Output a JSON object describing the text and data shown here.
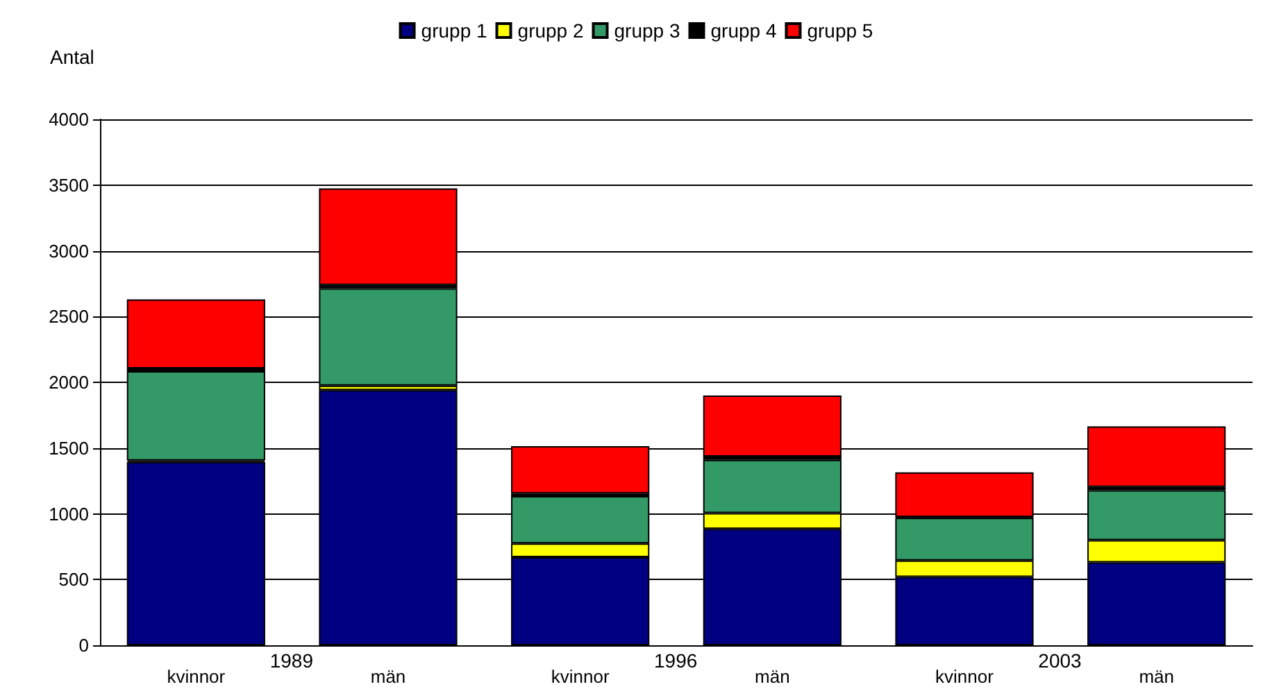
{
  "chart_data": {
    "type": "bar",
    "stacked": true,
    "ylabel": "Antal",
    "categories": [
      "kvinnor",
      "män",
      "kvinnor",
      "män",
      "kvinnor",
      "män"
    ],
    "series": [
      {
        "name": "grupp 1",
        "color": "#000080",
        "values": [
          1395,
          1940,
          670,
          885,
          520,
          630
        ]
      },
      {
        "name": "grupp 2",
        "color": "#ffff00",
        "values": [
          10,
          35,
          105,
          120,
          125,
          170
        ]
      },
      {
        "name": "grupp 3",
        "color": "#339966",
        "values": [
          680,
          740,
          360,
          405,
          325,
          380
        ]
      },
      {
        "name": "grupp 4",
        "color": "#000000",
        "values": [
          20,
          25,
          20,
          25,
          5,
          25
        ]
      },
      {
        "name": "grupp 5",
        "color": "#ff0000",
        "values": [
          525,
          735,
          360,
          465,
          340,
          460
        ]
      }
    ],
    "annotations": [
      "1989",
      "1996",
      "2003"
    ],
    "ylim": [
      0,
      4000
    ],
    "yticks": [
      0,
      500,
      1000,
      1500,
      2000,
      2500,
      3000,
      3500,
      4000
    ],
    "grid": "y",
    "legend": "top"
  }
}
